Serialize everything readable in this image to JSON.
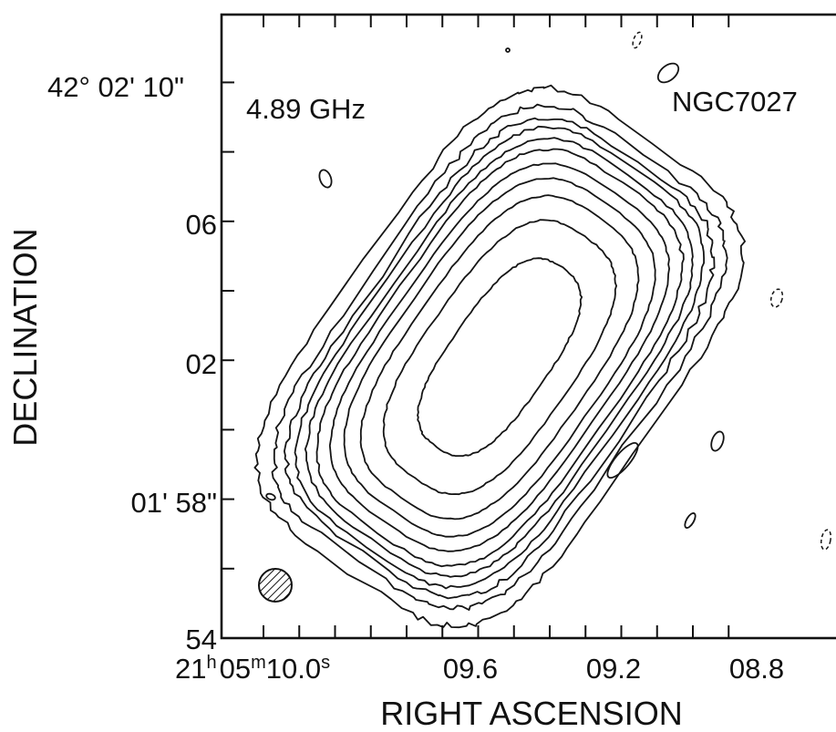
{
  "chart_data": {
    "type": "contour",
    "title_left": "4.89 GHz",
    "title_right": "NGC7027",
    "xlabel": "RIGHT ASCENSION",
    "ylabel": "DECLINATION",
    "x_ticks": [
      {
        "h": "21",
        "m": "05",
        "s": "10.0",
        "value_s": 10.0,
        "major": true
      },
      {
        "label": "09.6",
        "value_s": 9.6,
        "major": true
      },
      {
        "label": "09.2",
        "value_s": 9.2,
        "major": true
      },
      {
        "label": "08.8",
        "value_s": 8.8,
        "major": true
      }
    ],
    "y_ticks": [
      {
        "label": "42° 02' 10\"",
        "value_arcsec": 130
      },
      {
        "label": "06",
        "value_arcsec": 126
      },
      {
        "label": "02",
        "value_arcsec": 122
      },
      {
        "label": "01' 58\"",
        "value_arcsec": 118
      },
      {
        "label": "54",
        "value_arcsec": 114
      }
    ],
    "xlim_s": [
      10.07,
      8.68
    ],
    "ylim_arcsec": [
      114,
      131.4
    ],
    "x_minor_step_s": 0.1,
    "y_minor_step_arcsec": 2,
    "grid": false,
    "beam": "hatched circle, lower-left",
    "contour_levels": 11,
    "colors": {
      "ink": "#111111",
      "paper": "#ffffff"
    }
  }
}
